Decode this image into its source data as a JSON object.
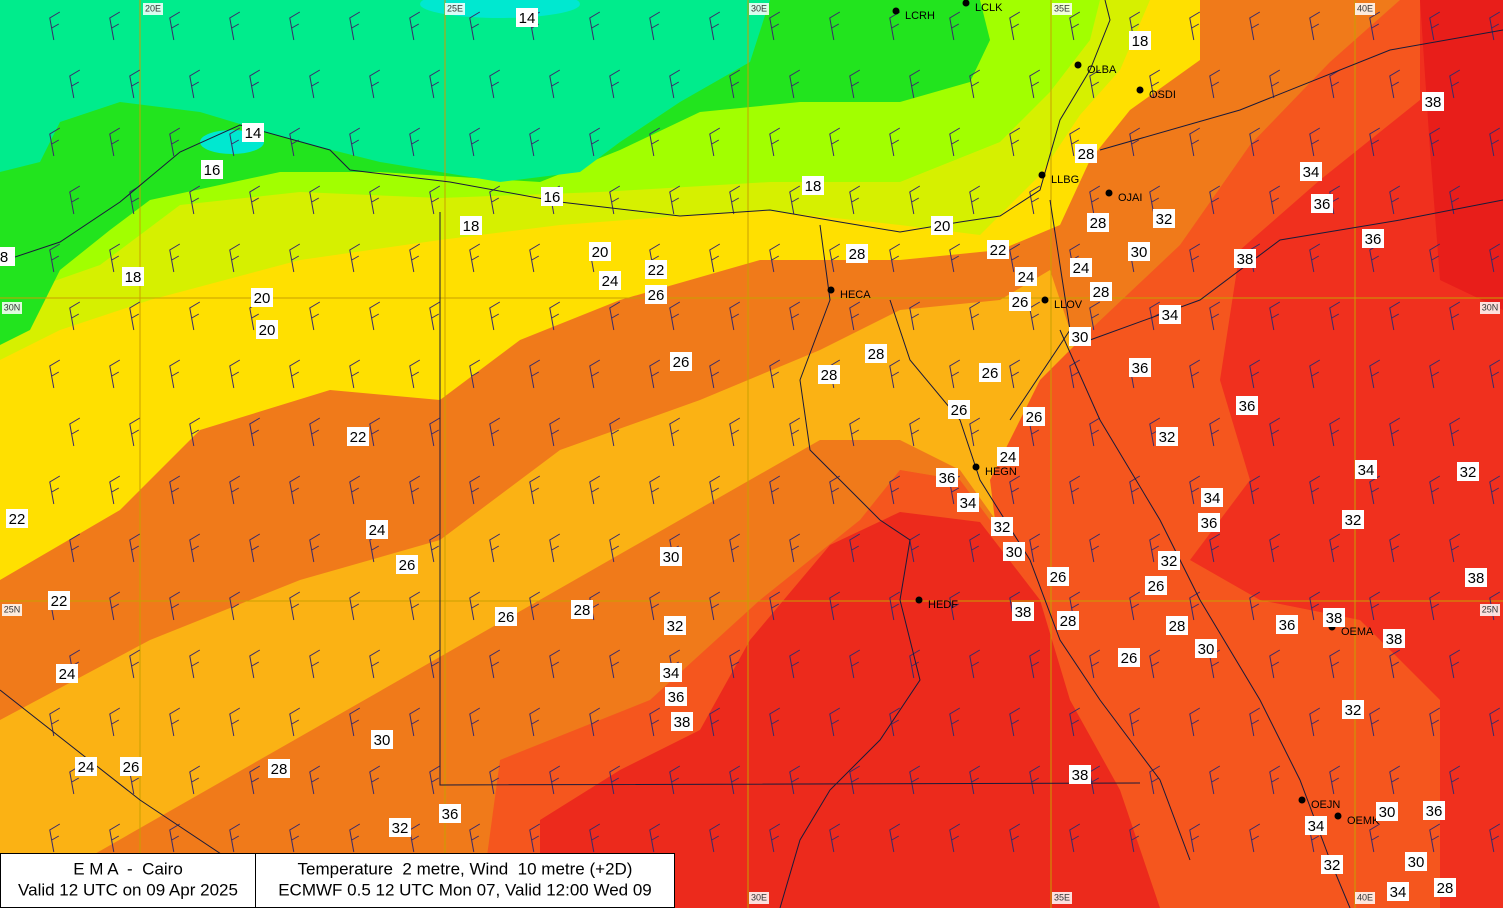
{
  "grid_labels": {
    "top": [
      "20E",
      "25E",
      "30E",
      "35E",
      "40E"
    ],
    "left": [
      "30N",
      "25N"
    ],
    "right": [
      "30N",
      "25N"
    ],
    "bottom": [
      "30E",
      "35E",
      "40E"
    ]
  },
  "stations": [
    "LCRH",
    "LCLK",
    "OLBA",
    "OSDI",
    "LLBG",
    "OJAI",
    "HECA",
    "LLOV",
    "HEGN",
    "HEDF",
    "OEMA",
    "OEJN",
    "OEMK"
  ],
  "temperature_labels": [
    14,
    18,
    38,
    14,
    16,
    16,
    18,
    28,
    34,
    36,
    18,
    20,
    28,
    32,
    36,
    8,
    20,
    22,
    28,
    22,
    30,
    38,
    18,
    24,
    24,
    24,
    20,
    26,
    26,
    28,
    20,
    30,
    34,
    28,
    26,
    28,
    26,
    36,
    26,
    26,
    36,
    22,
    32,
    24,
    36,
    34,
    32,
    34,
    34,
    22,
    24,
    32,
    36,
    32,
    26,
    30,
    30,
    32,
    26,
    26,
    38,
    22,
    28,
    26,
    32,
    38,
    28,
    28,
    36,
    38,
    38,
    30,
    26,
    24,
    34,
    36,
    38,
    32,
    30,
    24,
    26,
    28,
    38,
    36,
    32,
    30,
    36,
    34,
    30,
    32,
    28,
    34
  ],
  "footer": {
    "left": [
      "E M A  -  Cairo",
      "Valid 12 UTC on 09 Apr 2025"
    ],
    "right": [
      "Temperature  2 metre, Wind  10 metre (+2D)",
      "ECMWF 0.5 12 UTC Mon 07, Valid 12:00 Wed 09"
    ]
  }
}
